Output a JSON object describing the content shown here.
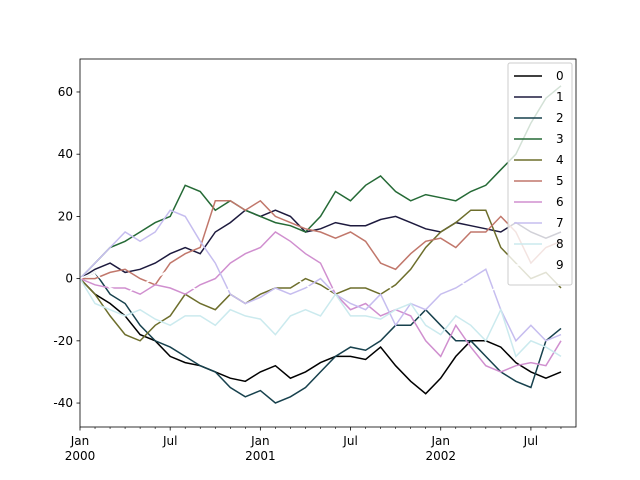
{
  "chart_data": {
    "type": "line",
    "x": [
      "2000-01",
      "2000-02",
      "2000-03",
      "2000-04",
      "2000-05",
      "2000-06",
      "2000-07",
      "2000-08",
      "2000-09",
      "2000-10",
      "2000-11",
      "2000-12",
      "2001-01",
      "2001-02",
      "2001-03",
      "2001-04",
      "2001-05",
      "2001-06",
      "2001-07",
      "2001-08",
      "2001-09",
      "2001-10",
      "2001-11",
      "2001-12",
      "2002-01",
      "2002-02",
      "2002-03",
      "2002-04",
      "2002-05",
      "2002-06",
      "2002-07",
      "2002-08",
      "2002-09"
    ],
    "series": [
      {
        "name": "0",
        "color": "#000000",
        "values": [
          0,
          -5,
          -8,
          -12,
          -18,
          -20,
          -25,
          -27,
          -28,
          -30,
          -32,
          -33,
          -30,
          -28,
          -32,
          -30,
          -27,
          -25,
          -25,
          -26,
          -22,
          -28,
          -33,
          -37,
          -32,
          -25,
          -20,
          -20,
          -22,
          -27,
          -30,
          -32,
          -30
        ]
      },
      {
        "name": "1",
        "color": "#1d1a3e",
        "values": [
          0,
          3,
          5,
          2,
          3,
          5,
          8,
          10,
          8,
          15,
          18,
          22,
          20,
          22,
          20,
          15,
          16,
          18,
          17,
          17,
          19,
          20,
          18,
          16,
          15,
          18,
          17,
          16,
          15,
          18,
          15,
          13,
          15
        ]
      },
      {
        "name": "2",
        "color": "#17414d",
        "values": [
          0,
          2,
          -5,
          -8,
          -15,
          -20,
          -22,
          -25,
          -28,
          -30,
          -35,
          -38,
          -36,
          -40,
          -38,
          -35,
          -30,
          -25,
          -22,
          -23,
          -20,
          -15,
          -15,
          -10,
          -15,
          -20,
          -20,
          -25,
          -30,
          -33,
          -35,
          -20,
          -16
        ]
      },
      {
        "name": "3",
        "color": "#256a36",
        "values": [
          0,
          5,
          10,
          12,
          15,
          18,
          20,
          30,
          28,
          22,
          25,
          22,
          20,
          18,
          17,
          15,
          20,
          28,
          25,
          30,
          33,
          28,
          25,
          27,
          26,
          25,
          28,
          30,
          35,
          40,
          50,
          58,
          62
        ]
      },
      {
        "name": "4",
        "color": "#6d6e2c",
        "values": [
          0,
          -5,
          -12,
          -18,
          -20,
          -15,
          -12,
          -5,
          -8,
          -10,
          -5,
          -8,
          -5,
          -3,
          -3,
          0,
          -2,
          -5,
          -3,
          -3,
          -5,
          -2,
          3,
          10,
          15,
          18,
          22,
          22,
          10,
          5,
          0,
          2,
          -3
        ]
      },
      {
        "name": "5",
        "color": "#c1776b",
        "values": [
          0,
          0,
          2,
          3,
          0,
          -2,
          5,
          8,
          10,
          25,
          25,
          22,
          25,
          20,
          18,
          16,
          15,
          13,
          15,
          12,
          5,
          3,
          8,
          12,
          13,
          10,
          15,
          15,
          20,
          15,
          5,
          10,
          12
        ]
      },
      {
        "name": "6",
        "color": "#d08fcf",
        "values": [
          0,
          -2,
          -3,
          -3,
          -5,
          -2,
          -3,
          -5,
          -2,
          0,
          5,
          8,
          10,
          15,
          12,
          8,
          5,
          -5,
          -10,
          -8,
          -12,
          -10,
          -12,
          -20,
          -25,
          -15,
          -22,
          -28,
          -30,
          -28,
          -27,
          -28,
          -20
        ]
      },
      {
        "name": "7",
        "color": "#c6bdef",
        "values": [
          0,
          5,
          10,
          15,
          12,
          15,
          22,
          20,
          12,
          5,
          -5,
          -8,
          -6,
          -3,
          -5,
          -3,
          0,
          -5,
          -8,
          -10,
          -5,
          -15,
          -8,
          -10,
          -5,
          -3,
          0,
          3,
          -10,
          -20,
          -15,
          -20,
          -18
        ]
      },
      {
        "name": "8",
        "color": "#cbeaee",
        "values": [
          0,
          -8,
          -10,
          -12,
          -10,
          -13,
          -15,
          -12,
          -12,
          -15,
          -10,
          -12,
          -13,
          -18,
          -12,
          -10,
          -12,
          -5,
          -12,
          -12,
          -13,
          -10,
          -8,
          -15,
          -18,
          -12,
          -15,
          -20,
          -10,
          -25,
          -20,
          -22,
          -25
        ]
      },
      {
        "name": "9",
        "color": "#ffffff",
        "values": [
          0,
          2,
          -3,
          -5,
          -2,
          0,
          3,
          -2,
          -4,
          -6,
          -3,
          -1,
          2,
          4,
          1,
          -2,
          -5,
          -3,
          0,
          2,
          -1,
          -4,
          -2,
          1,
          3,
          0,
          -3,
          -5,
          -2,
          1,
          -1,
          -3,
          -2
        ]
      }
    ],
    "xlim": [
      "2000-01",
      "2002-10"
    ],
    "xticks": [
      {
        "value": "2000-01",
        "label": "Jan",
        "sublabel": "2000"
      },
      {
        "value": "2000-07",
        "label": "Jul"
      },
      {
        "value": "2001-01",
        "label": "Jan",
        "sublabel": "2001"
      },
      {
        "value": "2001-07",
        "label": "Jul"
      },
      {
        "value": "2002-01",
        "label": "Jan",
        "sublabel": "2002"
      },
      {
        "value": "2002-07",
        "label": "Jul"
      }
    ],
    "xminorticks": [
      "2000-02",
      "2000-03",
      "2000-04",
      "2000-05",
      "2000-06",
      "2000-08",
      "2000-09",
      "2000-10",
      "2000-11",
      "2000-12",
      "2001-02",
      "2001-03",
      "2001-04",
      "2001-05",
      "2001-06",
      "2001-08",
      "2001-09",
      "2001-10",
      "2001-11",
      "2001-12",
      "2002-02",
      "2002-03",
      "2002-04",
      "2002-05",
      "2002-06",
      "2002-08",
      "2002-09"
    ],
    "ylim": [
      -47.7,
      70.6
    ],
    "yticks": [
      -40,
      -20,
      0,
      20,
      40,
      60
    ],
    "legend": "upper right"
  }
}
